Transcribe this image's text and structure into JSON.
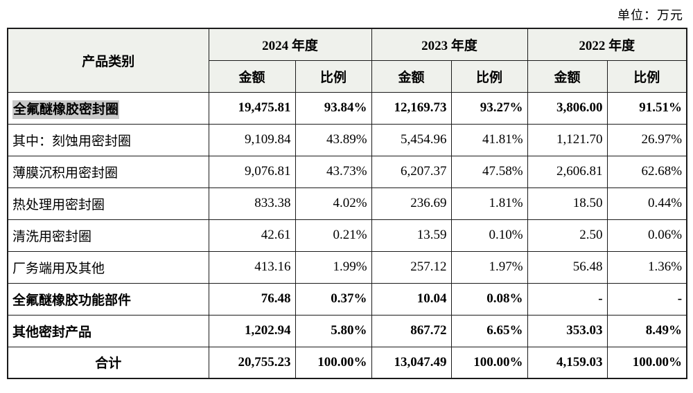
{
  "unit_label": "单位：万元",
  "table": {
    "col_header": "产品类别",
    "year_headers": [
      "2024 年度",
      "2023 年度",
      "2022 年度"
    ],
    "sub_headers": [
      "金额",
      "比例"
    ],
    "rows": [
      {
        "label": "全氟醚橡胶密封圈",
        "bold": true,
        "highlight": true,
        "total": false,
        "values": [
          "19,475.81",
          "93.84%",
          "12,169.73",
          "93.27%",
          "3,806.00",
          "91.51%"
        ]
      },
      {
        "label": "其中：刻蚀用密封圈",
        "bold": false,
        "highlight": false,
        "total": false,
        "values": [
          "9,109.84",
          "43.89%",
          "5,454.96",
          "41.81%",
          "1,121.70",
          "26.97%"
        ]
      },
      {
        "label": "薄膜沉积用密封圈",
        "bold": false,
        "highlight": false,
        "total": false,
        "values": [
          "9,076.81",
          "43.73%",
          "6,207.37",
          "47.58%",
          "2,606.81",
          "62.68%"
        ]
      },
      {
        "label": "热处理用密封圈",
        "bold": false,
        "highlight": false,
        "total": false,
        "values": [
          "833.38",
          "4.02%",
          "236.69",
          "1.81%",
          "18.50",
          "0.44%"
        ]
      },
      {
        "label": "清洗用密封圈",
        "bold": false,
        "highlight": false,
        "total": false,
        "values": [
          "42.61",
          "0.21%",
          "13.59",
          "0.10%",
          "2.50",
          "0.06%"
        ]
      },
      {
        "label": "厂务端用及其他",
        "bold": false,
        "highlight": false,
        "total": false,
        "values": [
          "413.16",
          "1.99%",
          "257.12",
          "1.97%",
          "56.48",
          "1.36%"
        ]
      },
      {
        "label": "全氟醚橡胶功能部件",
        "bold": true,
        "highlight": false,
        "total": false,
        "values": [
          "76.48",
          "0.37%",
          "10.04",
          "0.08%",
          "-",
          "-"
        ]
      },
      {
        "label": "其他密封产品",
        "bold": true,
        "highlight": false,
        "total": false,
        "values": [
          "1,202.94",
          "5.80%",
          "867.72",
          "6.65%",
          "353.03",
          "8.49%"
        ]
      },
      {
        "label": "合计",
        "bold": true,
        "highlight": false,
        "total": true,
        "values": [
          "20,755.23",
          "100.00%",
          "13,047.49",
          "100.00%",
          "4,159.03",
          "100.00%"
        ]
      }
    ]
  }
}
